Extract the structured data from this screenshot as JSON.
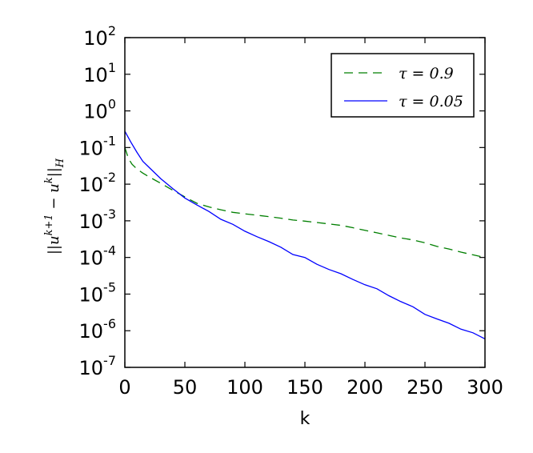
{
  "chart_data": {
    "type": "line",
    "title": "",
    "xlabel": "k",
    "ylabel": "||u^{k+1} − u^k||_H",
    "ylabel_parts": {
      "norm": "||",
      "base": "u",
      "sup": "k+1",
      "minus": " − ",
      "base2": "u",
      "sup2": "k",
      "sub": "H"
    },
    "xlim": [
      0,
      300
    ],
    "ylim": [
      1e-07,
      100
    ],
    "yscale": "log",
    "x_ticks": [
      "0",
      "50",
      "100",
      "150",
      "200",
      "250",
      "300"
    ],
    "y_ticks": [
      {
        "base": "10",
        "exp": "2"
      },
      {
        "base": "10",
        "exp": "1"
      },
      {
        "base": "10",
        "exp": "0"
      },
      {
        "base": "10",
        "exp": "-1"
      },
      {
        "base": "10",
        "exp": "-2"
      },
      {
        "base": "10",
        "exp": "-3"
      },
      {
        "base": "10",
        "exp": "-4"
      },
      {
        "base": "10",
        "exp": "-5"
      },
      {
        "base": "10",
        "exp": "-6"
      },
      {
        "base": "10",
        "exp": "-7"
      }
    ],
    "grid": false,
    "legend": "top-right",
    "series": [
      {
        "name": "τ = 0.9",
        "color": "#007f00",
        "style": "dashed",
        "x": [
          0,
          3,
          6,
          10,
          15,
          20,
          30,
          40,
          50,
          60,
          70,
          80,
          90,
          100,
          110,
          120,
          130,
          140,
          150,
          160,
          170,
          180,
          190,
          200,
          210,
          220,
          230,
          240,
          250,
          260,
          270,
          280,
          290,
          300
        ],
        "y": [
          0.1,
          0.05,
          0.035,
          0.026,
          0.02,
          0.016,
          0.0105,
          0.0068,
          0.0045,
          0.003,
          0.0024,
          0.002,
          0.0017,
          0.00155,
          0.00142,
          0.0013,
          0.00118,
          0.00105,
          0.00098,
          0.0009,
          0.00082,
          0.00075,
          0.00065,
          0.00055,
          0.00047,
          0.0004,
          0.00034,
          0.0003,
          0.00025,
          0.0002,
          0.00017,
          0.00014,
          0.000118,
          0.0001
        ]
      },
      {
        "name": "τ = 0.05",
        "color": "#0000ff",
        "style": "solid",
        "x": [
          0,
          5,
          10,
          15,
          20,
          30,
          40,
          50,
          60,
          70,
          80,
          90,
          100,
          110,
          120,
          130,
          140,
          150,
          160,
          170,
          180,
          190,
          200,
          210,
          220,
          230,
          240,
          250,
          260,
          270,
          280,
          290,
          300
        ],
        "y": [
          0.28,
          0.14,
          0.075,
          0.042,
          0.029,
          0.014,
          0.0075,
          0.0042,
          0.0027,
          0.0018,
          0.0011,
          0.0008,
          0.00052,
          0.00037,
          0.00027,
          0.00019,
          0.00012,
          0.0001,
          6.5e-05,
          4.7e-05,
          3.6e-05,
          2.5e-05,
          1.8e-05,
          1.4e-05,
          9e-06,
          6.2e-06,
          4.5e-06,
          2.8e-06,
          2.1e-06,
          1.6e-06,
          1.1e-06,
          8.8e-07,
          6e-07
        ]
      }
    ]
  }
}
